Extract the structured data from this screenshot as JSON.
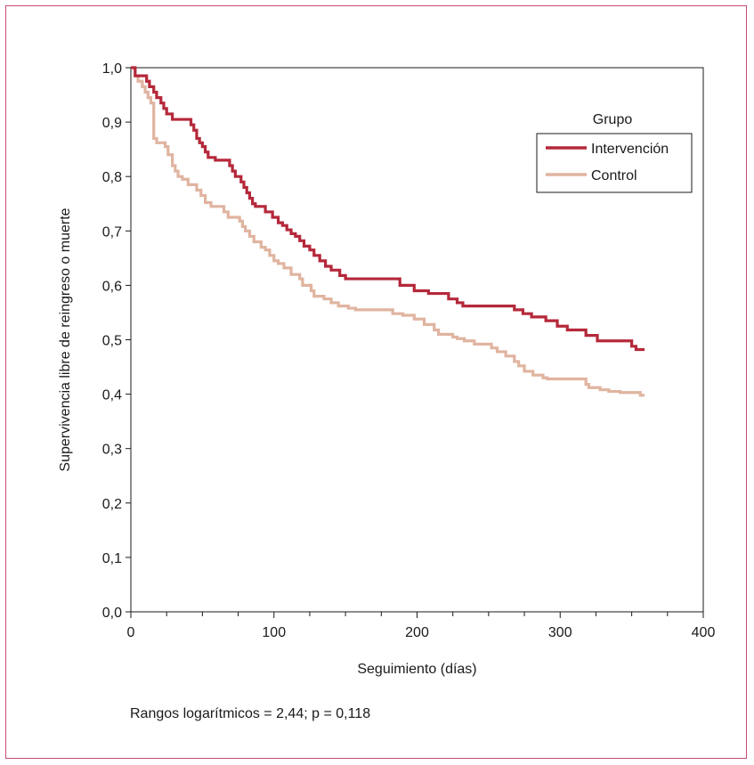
{
  "chart_data": {
    "type": "line",
    "step": true,
    "xlabel": "Seguimiento (días)",
    "ylabel": "Supervivencia libre de reingreso o muerte",
    "xlim": [
      0,
      400
    ],
    "ylim": [
      0,
      1
    ],
    "x_ticks": [
      0,
      100,
      200,
      300,
      400
    ],
    "x_tick_labels": [
      "0",
      "100",
      "200",
      "300",
      "400"
    ],
    "y_ticks": [
      0,
      0.1,
      0.2,
      0.3,
      0.4,
      0.5,
      0.6,
      0.7,
      0.8,
      0.9,
      1.0
    ],
    "y_tick_labels": [
      "0,0",
      "0,1",
      "0,2",
      "0,3",
      "0,4",
      "0,5",
      "0,6",
      "0,7",
      "0,8",
      "0,9",
      "1,0"
    ],
    "grid": false,
    "legend": {
      "title": "Grupo",
      "position": "top-right"
    },
    "annotation": "Rangos logarítmicos = 2,44; p = 0,118",
    "series": [
      {
        "name": "Intervención",
        "color": "#b5283a",
        "x": [
          0,
          3,
          5,
          11,
          13,
          16,
          18,
          21,
          23,
          25,
          29,
          33,
          42,
          44,
          46,
          48,
          50,
          52,
          54,
          59,
          69,
          71,
          73,
          77,
          79,
          81,
          83,
          85,
          87,
          91,
          94,
          99,
          103,
          106,
          109,
          112,
          115,
          118,
          121,
          125,
          128,
          132,
          136,
          140,
          146,
          150,
          152,
          155,
          158,
          188,
          198,
          208,
          210,
          222,
          228,
          232,
          236,
          268,
          274,
          280,
          290,
          298,
          305,
          318,
          326,
          335,
          350,
          353,
          359
        ],
        "y": [
          1.0,
          0.985,
          0.985,
          0.975,
          0.965,
          0.955,
          0.945,
          0.935,
          0.925,
          0.915,
          0.905,
          0.905,
          0.895,
          0.885,
          0.87,
          0.862,
          0.855,
          0.845,
          0.835,
          0.83,
          0.82,
          0.81,
          0.8,
          0.79,
          0.78,
          0.77,
          0.76,
          0.75,
          0.745,
          0.745,
          0.735,
          0.725,
          0.715,
          0.71,
          0.702,
          0.695,
          0.69,
          0.682,
          0.672,
          0.665,
          0.655,
          0.645,
          0.635,
          0.628,
          0.618,
          0.612,
          0.612,
          0.612,
          0.612,
          0.6,
          0.59,
          0.585,
          0.585,
          0.575,
          0.568,
          0.562,
          0.562,
          0.555,
          0.548,
          0.542,
          0.535,
          0.525,
          0.518,
          0.508,
          0.498,
          0.498,
          0.488,
          0.482,
          0.482
        ]
      },
      {
        "name": "Control",
        "color": "#e0b4a0",
        "x": [
          0,
          3,
          5,
          8,
          10,
          12,
          14,
          16,
          18,
          24,
          26,
          29,
          31,
          33,
          36,
          40,
          46,
          49,
          52,
          56,
          65,
          68,
          76,
          78,
          80,
          83,
          86,
          91,
          94,
          97,
          100,
          103,
          107,
          112,
          118,
          120,
          126,
          128,
          135,
          140,
          145,
          152,
          157,
          175,
          183,
          190,
          198,
          205,
          212,
          215,
          225,
          228,
          233,
          240,
          252,
          256,
          262,
          268,
          271,
          275,
          281,
          288,
          291,
          298,
          318,
          320,
          328,
          334,
          340,
          342,
          356,
          359
        ],
        "y": [
          1.0,
          0.985,
          0.975,
          0.965,
          0.955,
          0.945,
          0.935,
          0.87,
          0.862,
          0.855,
          0.84,
          0.82,
          0.81,
          0.8,
          0.795,
          0.785,
          0.775,
          0.765,
          0.752,
          0.745,
          0.735,
          0.725,
          0.718,
          0.708,
          0.7,
          0.69,
          0.68,
          0.67,
          0.665,
          0.655,
          0.645,
          0.64,
          0.632,
          0.62,
          0.612,
          0.6,
          0.59,
          0.58,
          0.575,
          0.568,
          0.562,
          0.558,
          0.555,
          0.555,
          0.548,
          0.545,
          0.538,
          0.528,
          0.518,
          0.51,
          0.505,
          0.502,
          0.498,
          0.492,
          0.485,
          0.478,
          0.47,
          0.46,
          0.452,
          0.442,
          0.435,
          0.43,
          0.428,
          0.428,
          0.418,
          0.412,
          0.408,
          0.405,
          0.405,
          0.403,
          0.398,
          0.398
        ]
      }
    ]
  }
}
